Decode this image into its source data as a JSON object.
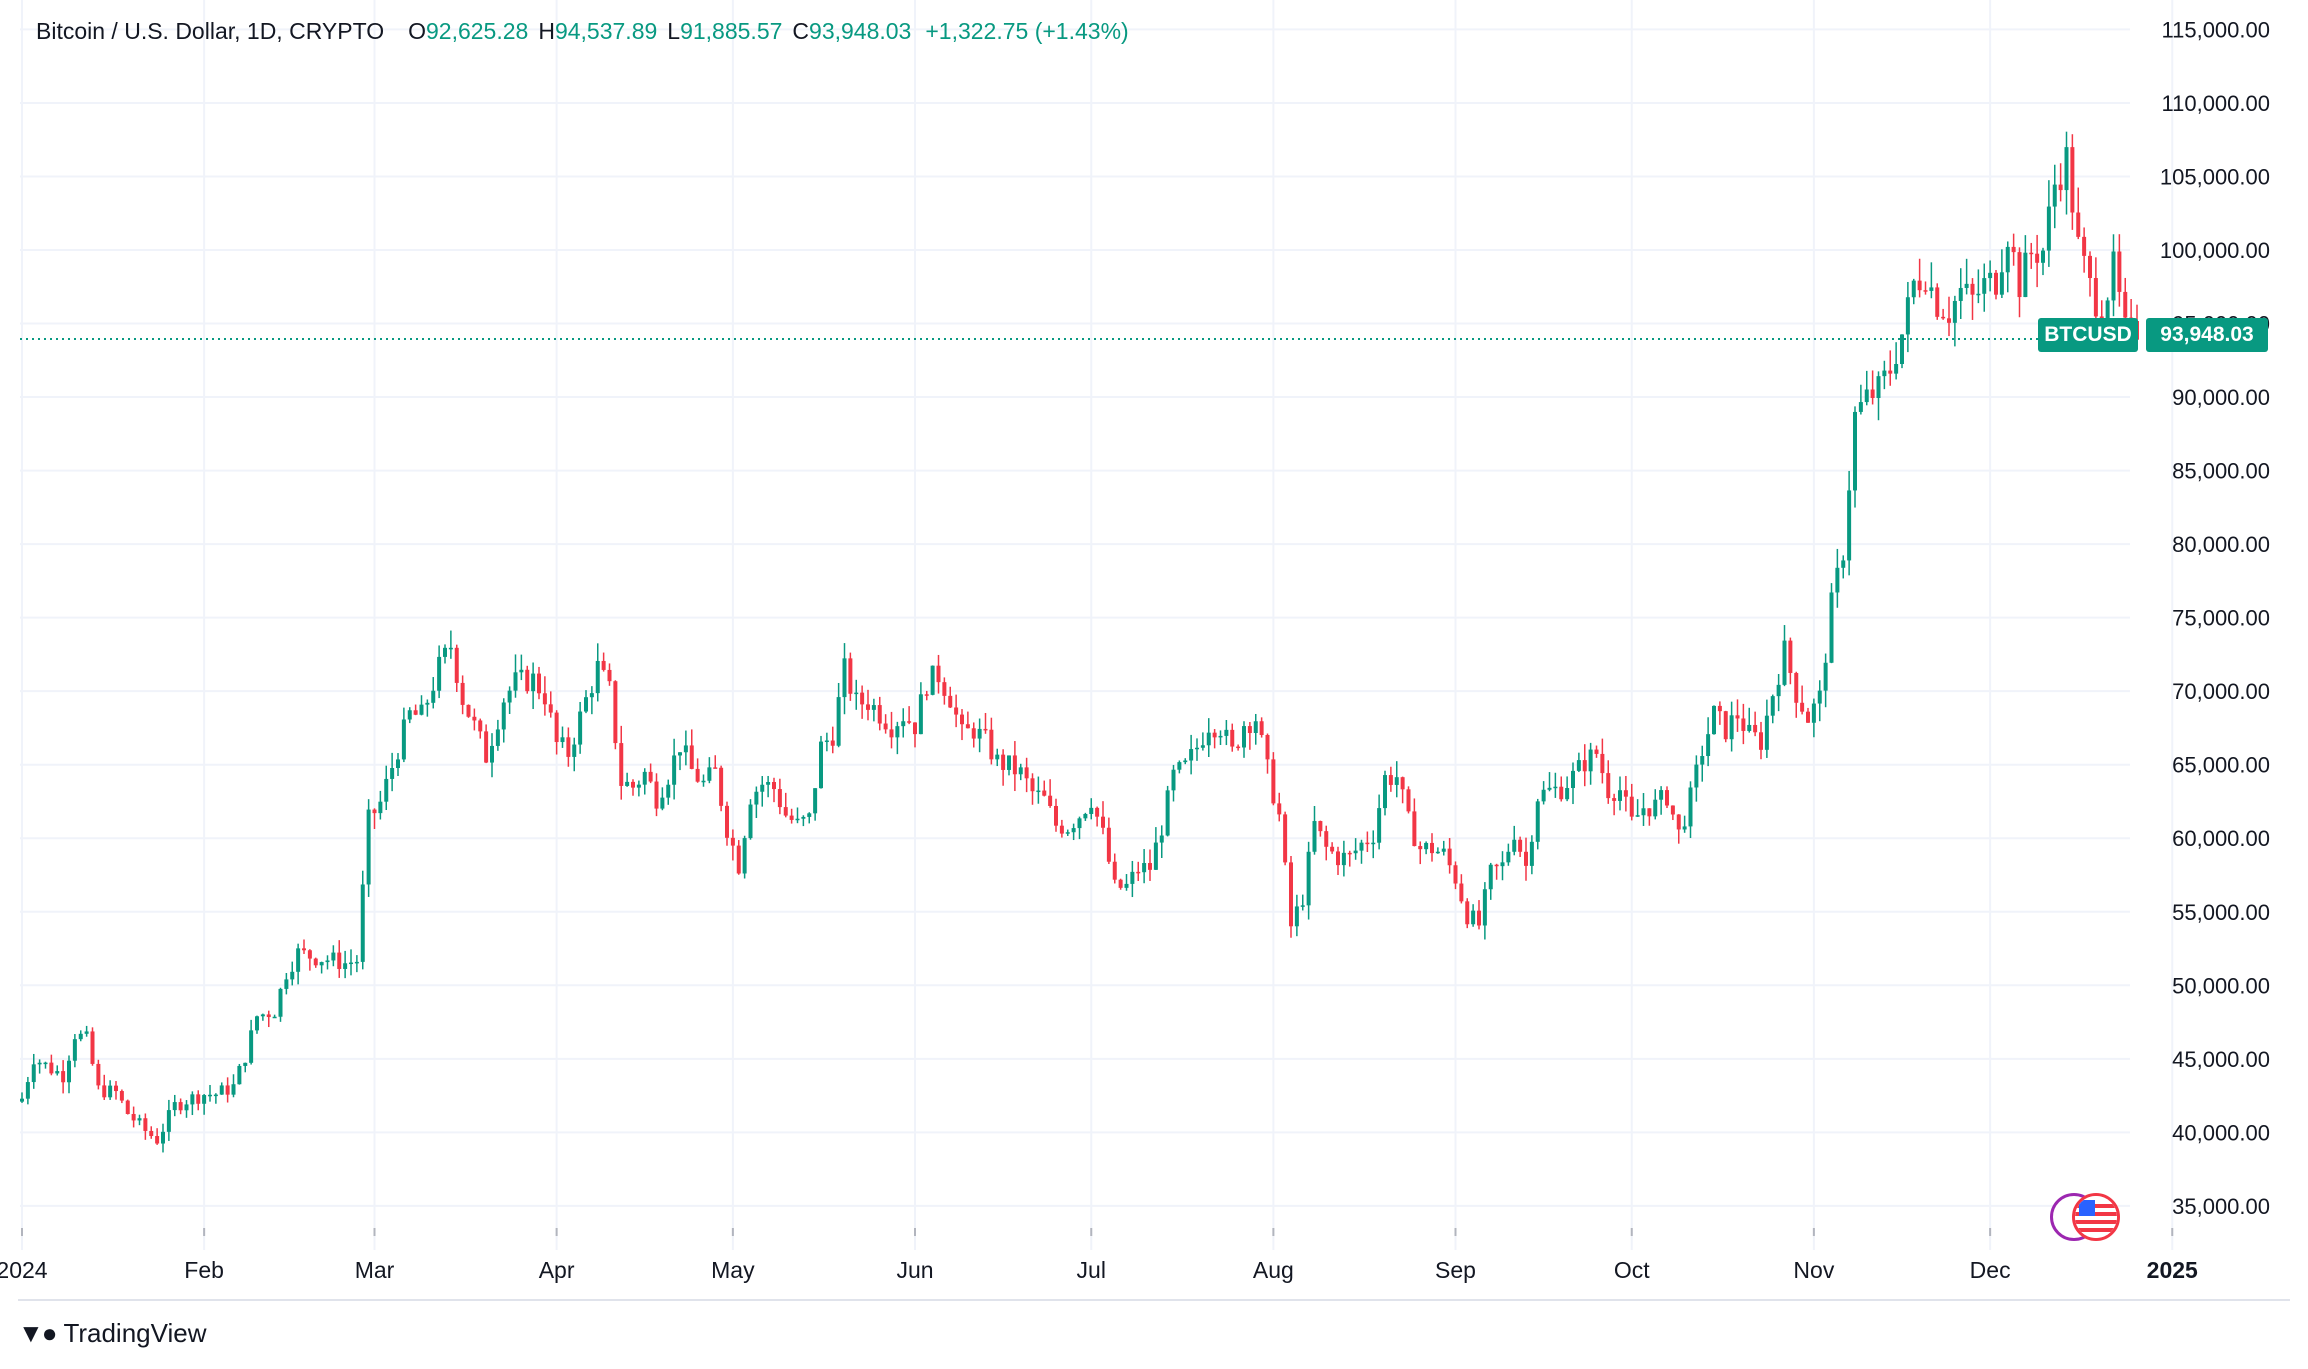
{
  "header": {
    "symbol": "Bitcoin / U.S. Dollar, 1D, CRYPTO",
    "open_label": "O",
    "open": "92,625.28",
    "high_label": "H",
    "high": "94,537.89",
    "low_label": "L",
    "low": "91,885.57",
    "close_label": "C",
    "close": "93,948.03",
    "change": "+1,322.75 (+1.43%)"
  },
  "price_badge": {
    "symbol": "BTCUSD",
    "price": "93,948.03"
  },
  "brand": {
    "name": "TradingView"
  },
  "colors": {
    "up": "#089981",
    "down": "#f23645",
    "grid": "#f0f3fa",
    "text": "#131722"
  },
  "chart_data": {
    "type": "candlestick",
    "title": "Bitcoin / U.S. Dollar, 1D, CRYPTO",
    "ylim": [
      32000,
      117000
    ],
    "y_ticks": [
      "35,000.00",
      "40,000.00",
      "45,000.00",
      "50,000.00",
      "55,000.00",
      "60,000.00",
      "65,000.00",
      "70,000.00",
      "75,000.00",
      "80,000.00",
      "85,000.00",
      "90,000.00",
      "95,000.00",
      "100,000.00",
      "105,000.00",
      "110,000.00",
      "115,000.00"
    ],
    "y_tick_values": [
      35000,
      40000,
      45000,
      50000,
      55000,
      60000,
      65000,
      70000,
      75000,
      80000,
      85000,
      90000,
      95000,
      100000,
      105000,
      110000,
      115000
    ],
    "x_ticks": [
      {
        "label": "2024",
        "day": 0
      },
      {
        "label": "Feb",
        "day": 31
      },
      {
        "label": "Mar",
        "day": 60
      },
      {
        "label": "Apr",
        "day": 91
      },
      {
        "label": "May",
        "day": 121
      },
      {
        "label": "Jun",
        "day": 152
      },
      {
        "label": "Jul",
        "day": 182
      },
      {
        "label": "Aug",
        "day": 213
      },
      {
        "label": "Sep",
        "day": 244
      },
      {
        "label": "Oct",
        "day": 274
      },
      {
        "label": "Nov",
        "day": 305
      },
      {
        "label": "Dec",
        "day": 335
      },
      {
        "label": "2025",
        "day": 366
      }
    ],
    "last_price": 93948.03,
    "daily_close_anchors": [
      [
        0,
        42300
      ],
      [
        2,
        45100
      ],
      [
        5,
        44300
      ],
      [
        7,
        43900
      ],
      [
        9,
        46700
      ],
      [
        11,
        46300
      ],
      [
        13,
        42900
      ],
      [
        16,
        42700
      ],
      [
        18,
        41300
      ],
      [
        21,
        40100
      ],
      [
        23,
        39500
      ],
      [
        26,
        41800
      ],
      [
        28,
        42200
      ],
      [
        31,
        42600
      ],
      [
        33,
        42600
      ],
      [
        36,
        43100
      ],
      [
        38,
        45200
      ],
      [
        40,
        47900
      ],
      [
        43,
        48300
      ],
      [
        45,
        50900
      ],
      [
        47,
        52200
      ],
      [
        50,
        51900
      ],
      [
        53,
        51700
      ],
      [
        55,
        51500
      ],
      [
        57,
        51700
      ],
      [
        59,
        61200
      ],
      [
        61,
        62400
      ],
      [
        64,
        66100
      ],
      [
        66,
        68400
      ],
      [
        68,
        68300
      ],
      [
        71,
        71600
      ],
      [
        73,
        73100
      ],
      [
        75,
        69500
      ],
      [
        77,
        67600
      ],
      [
        79,
        65600
      ],
      [
        82,
        69500
      ],
      [
        84,
        70600
      ],
      [
        87,
        70800
      ],
      [
        89,
        69700
      ],
      [
        91,
        66400
      ],
      [
        93,
        65800
      ],
      [
        96,
        69400
      ],
      [
        98,
        71600
      ],
      [
        100,
        70000
      ],
      [
        102,
        63800
      ],
      [
        104,
        63500
      ],
      [
        106,
        64400
      ],
      [
        108,
        62800
      ],
      [
        110,
        64300
      ],
      [
        112,
        66400
      ],
      [
        114,
        64600
      ],
      [
        116,
        63700
      ],
      [
        118,
        64500
      ],
      [
        120,
        60700
      ],
      [
        122,
        58200
      ],
      [
        124,
        62900
      ],
      [
        126,
        63700
      ],
      [
        128,
        63400
      ],
      [
        130,
        61600
      ],
      [
        132,
        60900
      ],
      [
        134,
        61300
      ],
      [
        136,
        66200
      ],
      [
        138,
        67100
      ],
      [
        140,
        71400
      ],
      [
        142,
        69200
      ],
      [
        144,
        69300
      ],
      [
        146,
        68500
      ],
      [
        148,
        67700
      ],
      [
        150,
        68400
      ],
      [
        152,
        67700
      ],
      [
        154,
        70600
      ],
      [
        156,
        71100
      ],
      [
        158,
        69600
      ],
      [
        160,
        67000
      ],
      [
        162,
        67400
      ],
      [
        164,
        66600
      ],
      [
        166,
        65200
      ],
      [
        168,
        64900
      ],
      [
        170,
        64400
      ],
      [
        172,
        63100
      ],
      [
        174,
        62600
      ],
      [
        176,
        60900
      ],
      [
        178,
        60800
      ],
      [
        180,
        61600
      ],
      [
        182,
        62700
      ],
      [
        184,
        60200
      ],
      [
        186,
        56600
      ],
      [
        188,
        56700
      ],
      [
        190,
        57900
      ],
      [
        192,
        58000
      ],
      [
        194,
        60800
      ],
      [
        196,
        64200
      ],
      [
        198,
        64800
      ],
      [
        200,
        66200
      ],
      [
        202,
        67800
      ],
      [
        204,
        67600
      ],
      [
        206,
        65800
      ],
      [
        208,
        67800
      ],
      [
        210,
        68200
      ],
      [
        212,
        64600
      ],
      [
        214,
        61500
      ],
      [
        216,
        54000
      ],
      [
        218,
        56000
      ],
      [
        220,
        60900
      ],
      [
        222,
        59300
      ],
      [
        224,
        58700
      ],
      [
        226,
        58700
      ],
      [
        228,
        59600
      ],
      [
        230,
        60300
      ],
      [
        232,
        64100
      ],
      [
        234,
        64200
      ],
      [
        236,
        61100
      ],
      [
        238,
        59300
      ],
      [
        240,
        59300
      ],
      [
        242,
        58900
      ],
      [
        244,
        57300
      ],
      [
        246,
        54800
      ],
      [
        248,
        54100
      ],
      [
        250,
        57600
      ],
      [
        252,
        58100
      ],
      [
        254,
        60500
      ],
      [
        256,
        58100
      ],
      [
        258,
        62900
      ],
      [
        260,
        63200
      ],
      [
        262,
        63400
      ],
      [
        264,
        64200
      ],
      [
        266,
        65200
      ],
      [
        268,
        65800
      ],
      [
        270,
        63300
      ],
      [
        272,
        63300
      ],
      [
        274,
        61000
      ],
      [
        276,
        62100
      ],
      [
        278,
        62200
      ],
      [
        280,
        62900
      ],
      [
        282,
        60300
      ],
      [
        284,
        62700
      ],
      [
        286,
        66000
      ],
      [
        288,
        68400
      ],
      [
        290,
        67400
      ],
      [
        292,
        68400
      ],
      [
        294,
        67000
      ],
      [
        296,
        66600
      ],
      [
        298,
        69900
      ],
      [
        300,
        72700
      ],
      [
        302,
        69900
      ],
      [
        304,
        68200
      ],
      [
        306,
        69500
      ],
      [
        308,
        75800
      ],
      [
        310,
        79600
      ],
      [
        312,
        88700
      ],
      [
        314,
        89900
      ],
      [
        316,
        90500
      ],
      [
        318,
        91900
      ],
      [
        320,
        94300
      ],
      [
        322,
        97700
      ],
      [
        324,
        98400
      ],
      [
        326,
        96400
      ],
      [
        328,
        95800
      ],
      [
        330,
        97200
      ],
      [
        332,
        96600
      ],
      [
        334,
        97600
      ],
      [
        336,
        98000
      ],
      [
        338,
        101200
      ],
      [
        340,
        97700
      ],
      [
        342,
        99800
      ],
      [
        344,
        100000
      ],
      [
        346,
        104500
      ],
      [
        348,
        106200
      ],
      [
        350,
        100200
      ],
      [
        352,
        97500
      ],
      [
        354,
        95800
      ],
      [
        356,
        98700
      ],
      [
        358,
        94400
      ],
      [
        360,
        93900
      ]
    ]
  }
}
